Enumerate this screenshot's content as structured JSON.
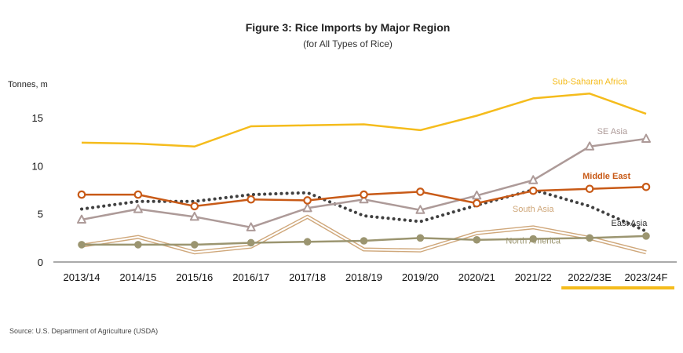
{
  "chart_data": {
    "type": "line",
    "title": "Figure 3: Rice Imports by Major Region",
    "subtitle": "(for All Types of Rice)",
    "ylabel": "Tonnes, m",
    "xlabel": "",
    "ylim": [
      0,
      20
    ],
    "yticks": [
      0,
      5,
      10,
      15
    ],
    "categories": [
      "2013/14",
      "2014/15",
      "2015/16",
      "2016/17",
      "2017/18",
      "2018/19",
      "2019/20",
      "2020/21",
      "2021/22",
      "2022/23E",
      "2023/24F"
    ],
    "highlight_categories": [
      "2022/23E",
      "2023/24F"
    ],
    "grid": false,
    "series": [
      {
        "name": "Sub-Saharan Africa",
        "color": "#f5bc1c",
        "style": "solid",
        "marker": "none",
        "values": [
          12.4,
          12.3,
          12.0,
          14.1,
          14.2,
          14.3,
          13.7,
          15.2,
          17.0,
          17.5,
          15.4
        ]
      },
      {
        "name": "SE Asia",
        "color": "#ad9a98",
        "style": "solid",
        "marker": "triangle",
        "values": [
          4.4,
          5.5,
          4.7,
          3.6,
          5.6,
          6.5,
          5.4,
          6.9,
          8.5,
          12.0,
          12.8
        ]
      },
      {
        "name": "Middle East",
        "color": "#c85a17",
        "style": "solid",
        "marker": "circle-open",
        "values": [
          7.0,
          7.0,
          5.8,
          6.5,
          6.4,
          7.0,
          7.3,
          6.1,
          7.4,
          7.6,
          7.8
        ]
      },
      {
        "name": "East Asia",
        "color": "#404040",
        "style": "dotted",
        "marker": "none",
        "values": [
          5.5,
          6.3,
          6.3,
          7.0,
          7.2,
          4.8,
          4.2,
          5.9,
          7.5,
          5.8,
          3.2
        ]
      },
      {
        "name": "South Asia",
        "color": "#cfa77a",
        "style": "double",
        "marker": "none",
        "values": [
          1.7,
          2.6,
          1.0,
          1.6,
          4.7,
          1.3,
          1.2,
          3.0,
          3.6,
          2.5,
          1.0
        ]
      },
      {
        "name": "North America",
        "color": "#9b9570",
        "style": "solid",
        "marker": "circle-filled",
        "values": [
          1.8,
          1.8,
          1.8,
          2.0,
          2.1,
          2.2,
          2.5,
          2.3,
          2.4,
          2.5,
          2.7
        ]
      }
    ],
    "source": "Source: U.S. Department of Agriculture (USDA)"
  }
}
